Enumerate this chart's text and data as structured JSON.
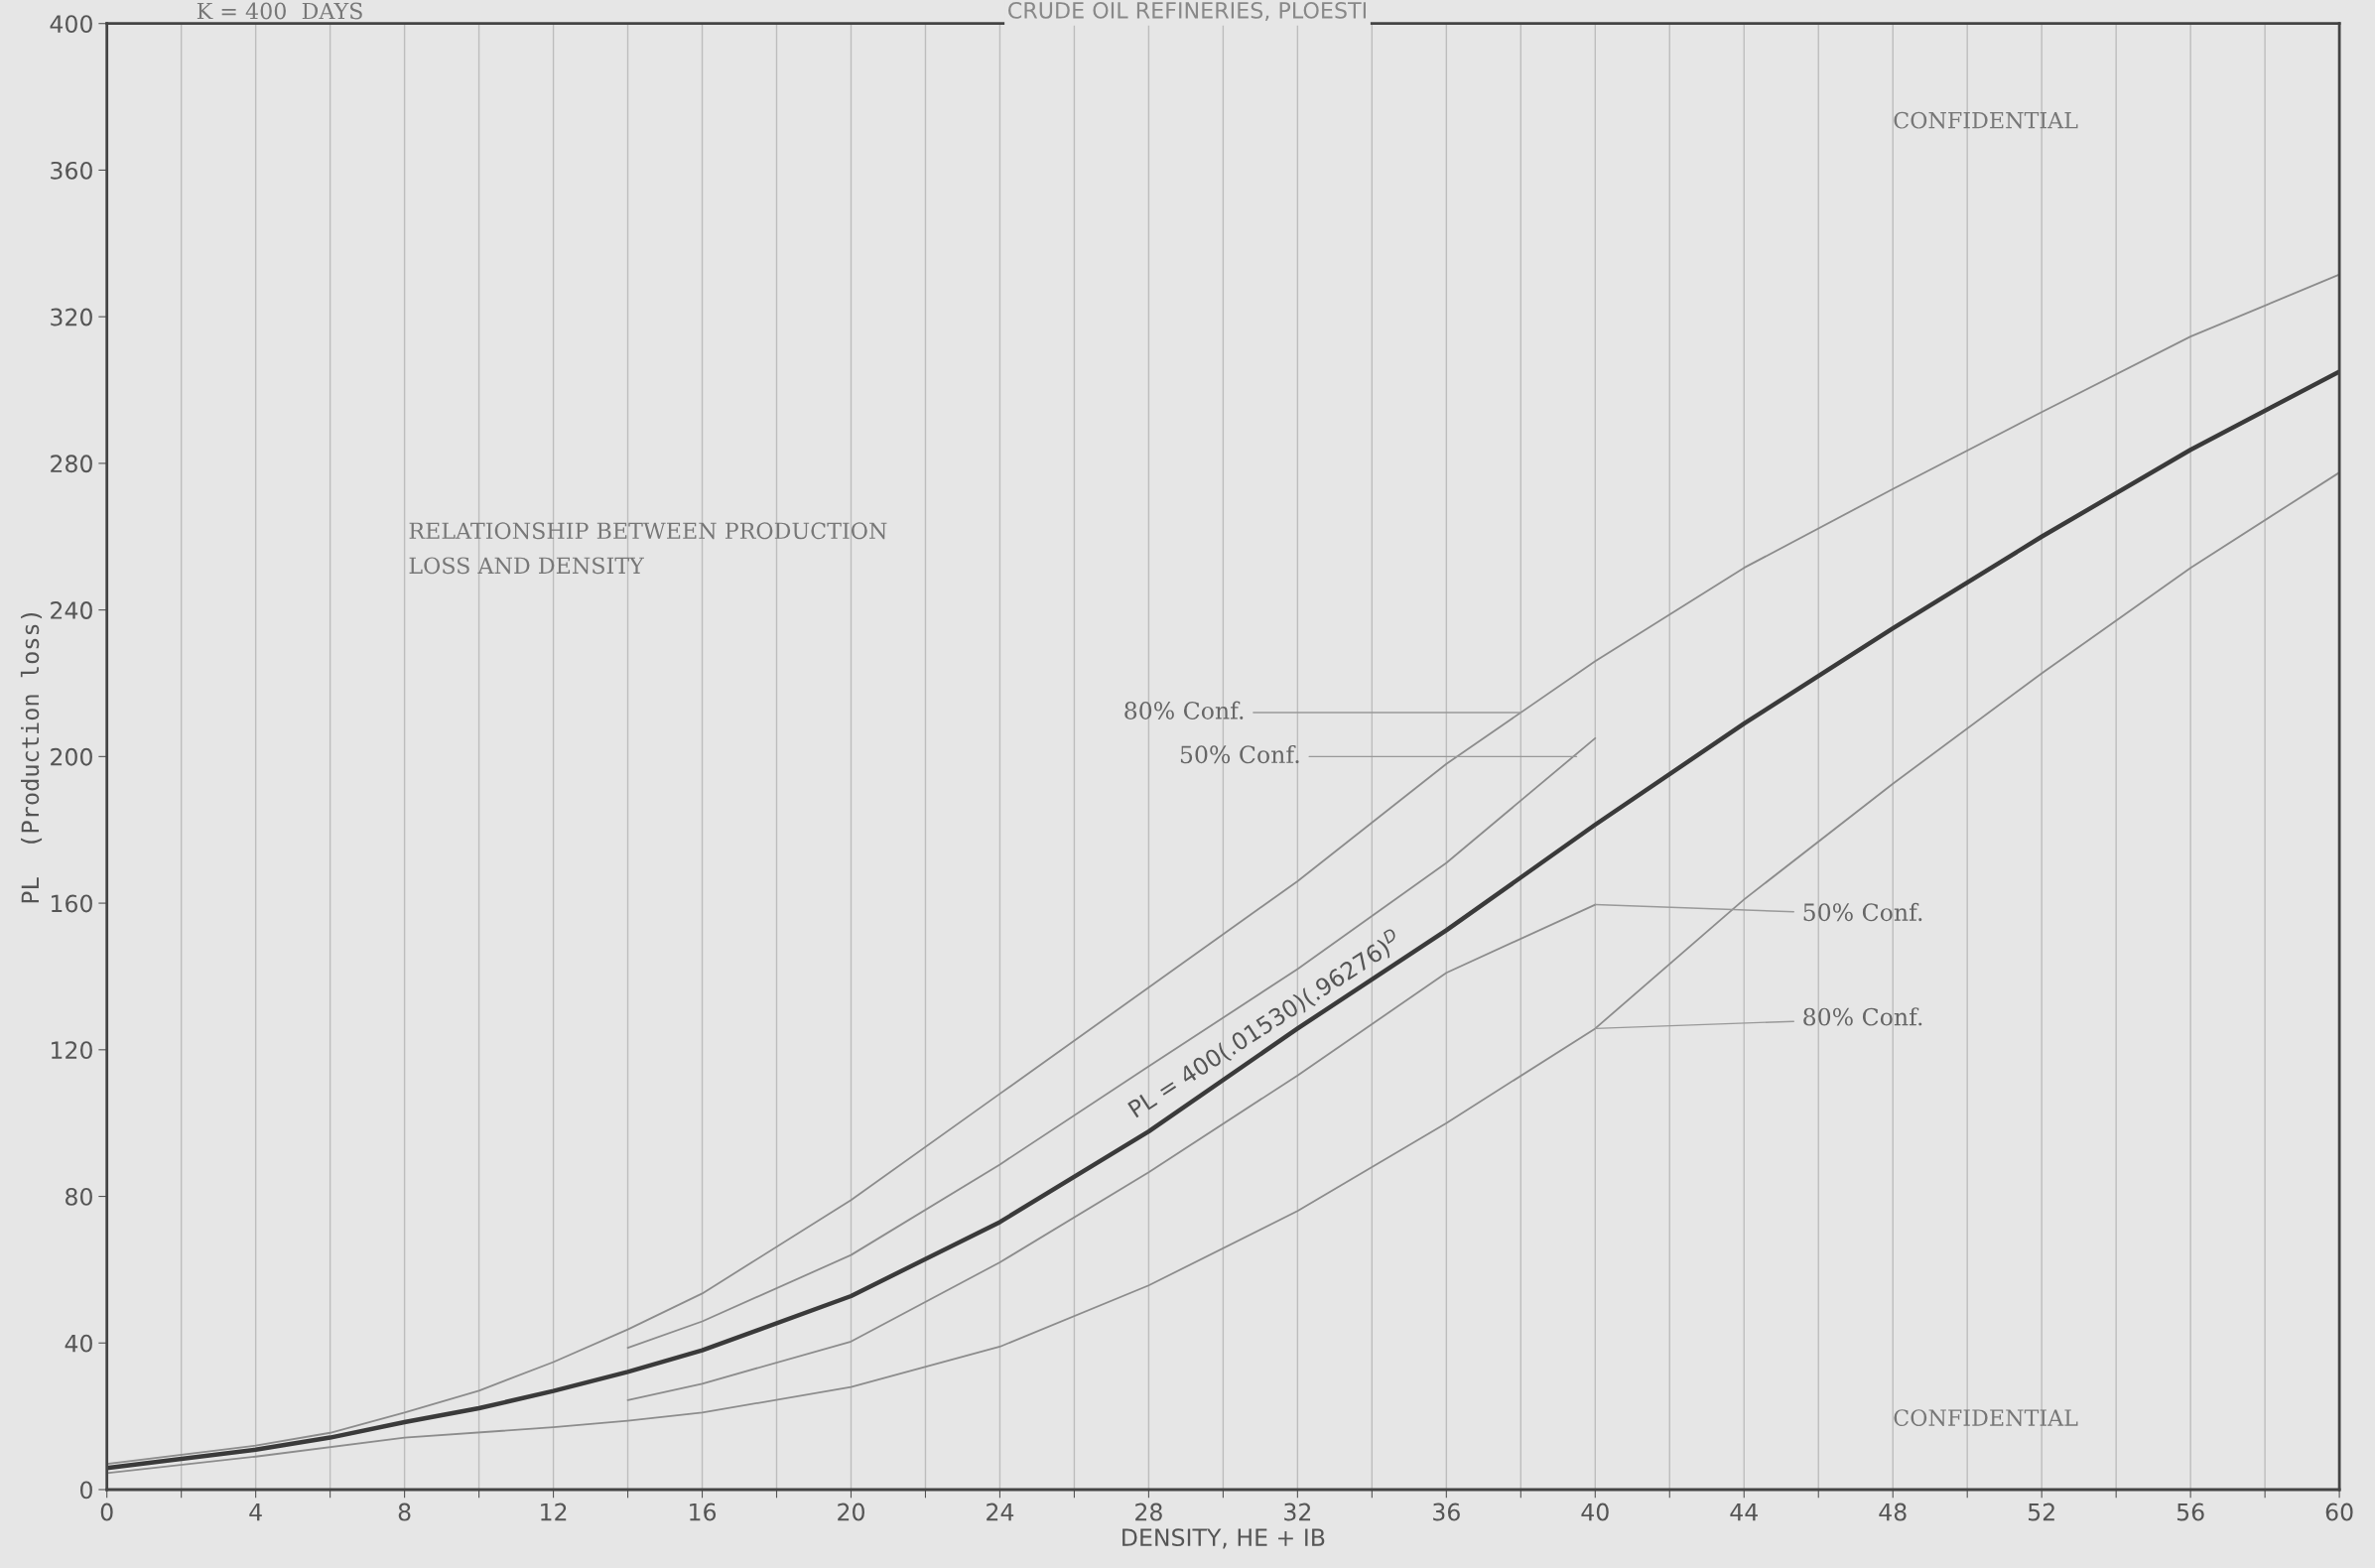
{
  "chart_data": {
    "type": "line",
    "title": "CRUDE OIL REFINERIES, PLOESTI",
    "xlabel": "DENSITY, HE + IB",
    "ylabel": "PL  (Production loss)",
    "x": [
      0,
      4,
      6,
      8,
      10,
      12,
      14,
      16,
      20,
      24,
      28,
      32,
      36,
      40,
      44,
      48,
      52,
      56,
      60
    ],
    "series": [
      {
        "color": "#8c8c8c",
        "values": [
          7,
          12,
          15.5,
          21,
          27,
          34.8,
          43.7,
          53.5,
          79,
          108,
          137,
          166,
          198,
          226,
          251.5,
          273,
          294,
          314.6,
          331.5
        ]
      },
      {
        "color": "#8c8c8c",
        "x": [
          14,
          16,
          20,
          24,
          28,
          32,
          36,
          40
        ],
        "values": [
          38.7,
          45.9,
          64,
          88.7,
          115.5,
          142,
          171,
          205
        ]
      },
      {
        "color": "#3a3a3a",
        "values": [
          5.9,
          10.9,
          14.2,
          18.4,
          22.2,
          26.9,
          32.1,
          38,
          52.8,
          73,
          97.7,
          125.8,
          152.6,
          181.4,
          209,
          235,
          260,
          283.7,
          305
        ]
      },
      {
        "color": "#8c8c8c",
        "x": [
          14,
          16,
          20,
          24,
          28,
          32,
          36,
          40
        ],
        "values": [
          24.4,
          28.9,
          40.4,
          62,
          86.6,
          113,
          141,
          159.6
        ]
      },
      {
        "color": "#8c8c8c",
        "x": [
          0,
          4,
          8,
          12,
          14,
          16,
          20,
          24,
          28,
          32,
          36,
          40,
          44,
          48,
          52,
          56,
          60
        ],
        "values": [
          4.5,
          9,
          14.2,
          17,
          18.8,
          21,
          28,
          39,
          55.7,
          76,
          100,
          125.8,
          161,
          192.6,
          222.7,
          251.5,
          277.5
        ]
      }
    ],
    "xlim": [
      0,
      60
    ],
    "xticks": [
      0,
      {
        "value": 2,
        "label": null
      },
      4,
      {
        "value": 6,
        "label": null
      },
      8,
      {
        "value": 10,
        "label": null
      },
      12,
      {
        "value": 14,
        "label": null
      },
      16,
      {
        "value": 18,
        "label": null
      },
      20,
      {
        "value": 22,
        "label": null
      },
      24,
      {
        "value": 26,
        "label": null
      },
      28,
      {
        "value": 30,
        "label": null
      },
      32,
      {
        "value": 34,
        "label": null
      },
      36,
      {
        "value": 38,
        "label": null
      },
      40,
      {
        "value": 42,
        "label": null
      },
      44,
      {
        "value": 46,
        "label": null
      },
      48,
      {
        "value": 50,
        "label": null
      },
      52,
      {
        "value": 54,
        "label": null
      },
      56,
      {
        "value": 58,
        "label": null
      },
      60
    ],
    "ylim": [
      0,
      400
    ],
    "yticks": [
      0,
      40,
      80,
      120,
      160,
      200,
      240,
      280,
      320,
      360,
      400
    ],
    "grid": "x",
    "annotations": [
      "K = 400  DAYS",
      "CONFIDENTIAL",
      "RELATIONSHIP BETWEEN PRODUCTION\nLOSS AND DENSITY",
      "CONFIDENTIAL",
      {
        "text": "80% Conf.",
        "x": 38,
        "y": 212
      },
      {
        "text": "50% Conf.",
        "x": 39.5,
        "y": 200
      },
      {
        "text": "50% Conf.",
        "x": 40,
        "y": 159.6
      },
      {
        "text": "80% Conf.",
        "x": 40,
        "y": 125.8
      },
      {
        "text": "PL = 400(.01530)(.96276)$^{D}$",
        "x": 28,
        "y": 97.7
      }
    ]
  }
}
